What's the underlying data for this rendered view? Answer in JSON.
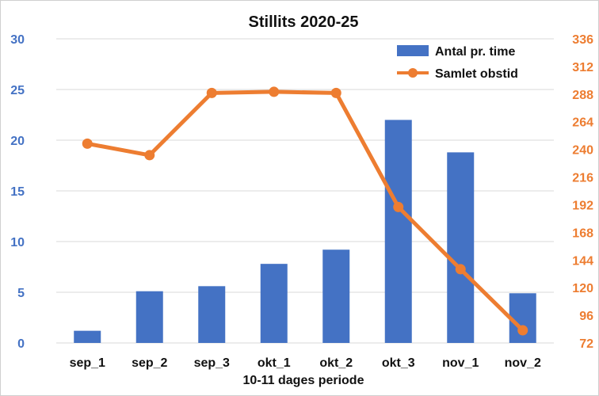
{
  "chart_data": {
    "type": "bar+line",
    "title": "Stillits 2020-25",
    "xlabel": "10-11 dages periode",
    "categories": [
      "sep_1",
      "sep_2",
      "sep_3",
      "okt_1",
      "okt_2",
      "okt_3",
      "nov_1",
      "nov_2"
    ],
    "series": [
      {
        "name": "Antal pr. time",
        "type": "bar",
        "axis": "left",
        "values": [
          1.2,
          5.1,
          5.6,
          7.8,
          9.2,
          22.0,
          18.8,
          4.9
        ]
      },
      {
        "name": "Samlet obstid",
        "type": "line",
        "axis": "right",
        "values": [
          245,
          235,
          289,
          290,
          289,
          190,
          136,
          83
        ]
      }
    ],
    "left_axis": {
      "min": 0,
      "max": 30,
      "ticks": [
        "0",
        "5",
        "10",
        "15",
        "20",
        "25",
        "30"
      ]
    },
    "right_axis": {
      "min": 72,
      "max": 336,
      "ticks": [
        "72",
        "96",
        "120",
        "144",
        "168",
        "192",
        "216",
        "240",
        "264",
        "288",
        "312",
        "336"
      ]
    },
    "legend_position": "top-right",
    "grid": true,
    "colors": {
      "bar": "#4472C4",
      "line": "#ED7D31",
      "left_tick": "#4472C4",
      "right_tick": "#ED7D31",
      "grid": "#d9d9d9"
    }
  }
}
